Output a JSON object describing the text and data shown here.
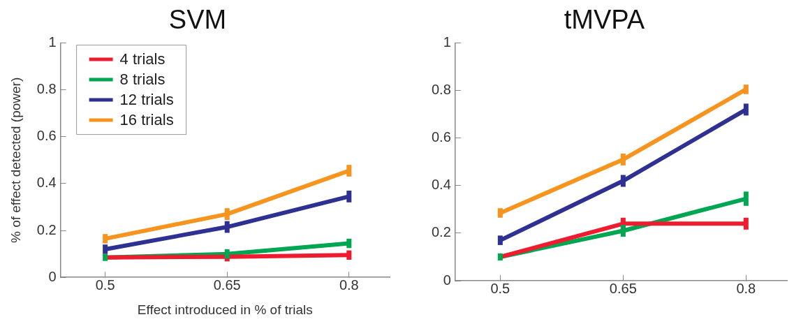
{
  "chart_data": [
    {
      "type": "line",
      "title": "SVM",
      "xlabel": "Effect introduced in % of trials",
      "ylabel": "% of effect detected (power)",
      "x": [
        0.5,
        0.65,
        0.8
      ],
      "xlim": [
        0.445,
        0.85
      ],
      "xticks": [
        0.5,
        0.65,
        0.8
      ],
      "ylim": [
        0,
        1
      ],
      "yticks": [
        0,
        0.2,
        0.4,
        0.6,
        0.8,
        1
      ],
      "legend": "top left",
      "line_style": "solid",
      "grid": false,
      "series": [
        {
          "name": "4 trials",
          "color": "#ed1c2e",
          "values": [
            0.085,
            0.088,
            0.095
          ],
          "errors": [
            null,
            0.02,
            0.02
          ]
        },
        {
          "name": "8 trials",
          "color": "#00a651",
          "values": [
            0.085,
            0.1,
            0.145
          ],
          "errors": [
            0.015,
            0.02,
            0.02
          ]
        },
        {
          "name": "12 trials",
          "color": "#2e3192",
          "values": [
            0.12,
            0.215,
            0.345
          ],
          "errors": [
            0.02,
            0.025,
            0.025
          ]
        },
        {
          "name": "16 trials",
          "color": "#f7941d",
          "values": [
            0.165,
            0.27,
            0.455
          ],
          "errors": [
            0.02,
            0.025,
            0.025
          ]
        }
      ]
    },
    {
      "type": "line",
      "title": "tMVPA",
      "x": [
        0.5,
        0.65,
        0.8
      ],
      "xlim": [
        0.445,
        0.85
      ],
      "xticks": [
        0.5,
        0.65,
        0.8
      ],
      "ylim": [
        0,
        1
      ],
      "yticks": [
        0,
        0.2,
        0.4,
        0.6,
        0.8,
        1
      ],
      "line_style": "solid",
      "grid": false,
      "series": [
        {
          "color": "#ed1c2e",
          "values": [
            0.1,
            0.24,
            0.24
          ],
          "errors": [
            null,
            0.025,
            0.025
          ]
        },
        {
          "color": "#00a651",
          "values": [
            0.1,
            0.21,
            0.345
          ],
          "errors": [
            0.015,
            0.025,
            0.03
          ]
        },
        {
          "color": "#2e3192",
          "values": [
            0.17,
            0.42,
            0.72
          ],
          "errors": [
            0.02,
            0.025,
            0.025
          ]
        },
        {
          "color": "#f7941d",
          "values": [
            0.285,
            0.51,
            0.805
          ],
          "errors": [
            0.02,
            0.025,
            0.02
          ]
        }
      ]
    }
  ]
}
